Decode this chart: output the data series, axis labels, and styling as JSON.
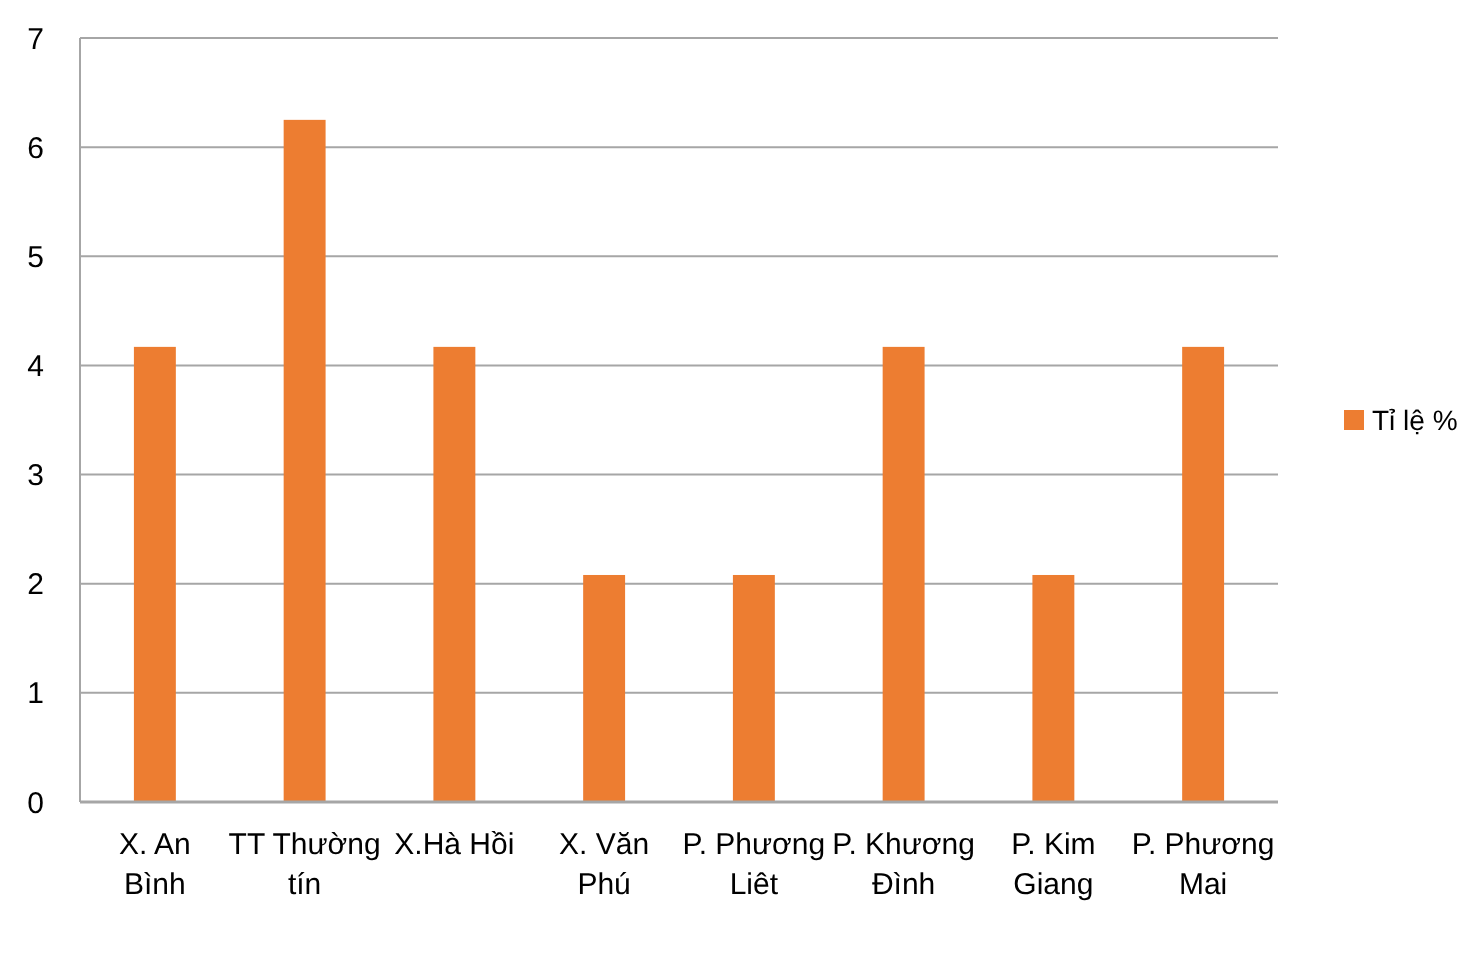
{
  "chart_data": {
    "type": "bar",
    "categories": [
      "X. An Bình",
      "TT Thường tín",
      "X.Hà Hồi",
      "X. Văn Phú",
      "P. Phương Liêt",
      "P. Khương Đình",
      "P. Kim Giang",
      "P. Phương Mai"
    ],
    "series": [
      {
        "name": "Tỉ lệ %",
        "color": "#ed7d31",
        "values": [
          4.17,
          6.25,
          4.17,
          2.08,
          2.08,
          4.17,
          2.08,
          4.17
        ]
      }
    ],
    "ylim": [
      0,
      7
    ],
    "yticks": [
      0,
      1,
      2,
      3,
      4,
      5,
      6,
      7
    ],
    "grid": "y",
    "legend": "right"
  }
}
